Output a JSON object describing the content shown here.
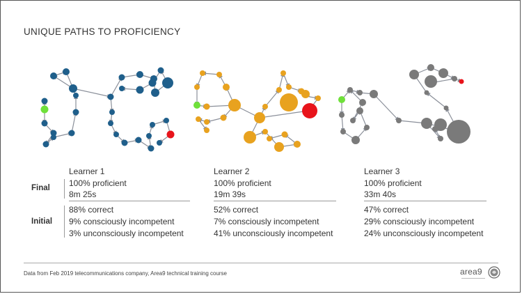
{
  "slide": {
    "title": "UNIQUE PATHS TO PROFICIENCY"
  },
  "colors": {
    "learner1_node": "#1f5f8b",
    "learner2_node": "#e8a21f",
    "learner3_node": "#7a7a7a",
    "start_node": "#6fe03a",
    "end_node": "#e8141b",
    "edge": "#8a8f99"
  },
  "learners": [
    {
      "name": "Learner 1",
      "final": [
        "100% proficient",
        "8m 25s"
      ],
      "initial": [
        "88% correct",
        "9% consciously incompetent",
        "3% unconsciously incompetent"
      ]
    },
    {
      "name": "Learner 2",
      "final": [
        "100% proficient",
        "19m 39s"
      ],
      "initial": [
        "52% correct",
        "7% consciously incompetent",
        "41% unconsciously incompetent"
      ]
    },
    {
      "name": "Learner 3",
      "final": [
        "100% proficient",
        "33m 40s"
      ],
      "initial": [
        "47% correct",
        "29% consciously incompetent",
        "24% unconsciously incompetent"
      ]
    }
  ],
  "row_labels": {
    "final": "Final",
    "initial": "Initial"
  },
  "footer": {
    "note": "Data from Feb 2019 telecommunications company, Area9 technical training course",
    "logo_text": "area9"
  },
  "icons": {
    "logo_mark": "area9-lion-icon"
  }
}
